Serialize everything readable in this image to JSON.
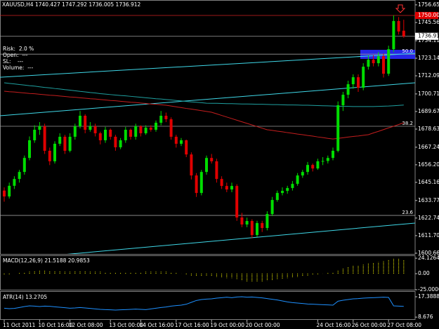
{
  "chart_data": {
    "type": "candlestick",
    "symbol": "XAUUSD,H4",
    "categories": [
      "11 Oct 2011",
      null,
      null,
      null,
      null,
      null,
      null,
      "10 Oct 16:00",
      null,
      null,
      null,
      null,
      null,
      "12 Oct 08:00",
      null,
      null,
      null,
      null,
      null,
      null,
      null,
      "13 Oct 00:00",
      null,
      null,
      null,
      null,
      null,
      "14 Oct 16:00",
      null,
      null,
      null,
      null,
      null,
      null,
      "17 Oct 16:00",
      null,
      null,
      null,
      null,
      null,
      null,
      "19 Oct 00:00",
      null,
      null,
      null,
      null,
      null,
      null,
      "20 Oct 00:00",
      null,
      null,
      null,
      null,
      null,
      null,
      null,
      null,
      null,
      null,
      null,
      null,
      null,
      "24 Oct 16:00",
      null,
      null,
      null,
      null,
      null,
      null,
      "26 Oct 00:00",
      null,
      null,
      null,
      null,
      null,
      null,
      "27 Oct 08:00",
      null,
      null,
      null
    ],
    "ohlc": [
      [
        1640,
        1642,
        1633,
        1636.3
      ],
      [
        1636.3,
        1645,
        1635,
        1643
      ],
      [
        1643,
        1649,
        1641,
        1647.3
      ],
      [
        1647.3,
        1653,
        1645,
        1651.7
      ],
      [
        1651.7,
        1662,
        1650,
        1660.5
      ],
      [
        1660.5,
        1674,
        1659,
        1671.6
      ],
      [
        1671.6,
        1681,
        1670,
        1678.2
      ],
      [
        1678.2,
        1683,
        1675,
        1680.4
      ],
      [
        1680.4,
        1682,
        1663,
        1665
      ],
      [
        1665,
        1667,
        1656,
        1658.4
      ],
      [
        1658.4,
        1671,
        1657,
        1669.4
      ],
      [
        1669.4,
        1676,
        1668,
        1673.8
      ],
      [
        1673.8,
        1675,
        1663,
        1665
      ],
      [
        1665,
        1676,
        1664,
        1673.8
      ],
      [
        1673.8,
        1682,
        1672,
        1680.4
      ],
      [
        1680.4,
        1690,
        1679,
        1687
      ],
      [
        1687,
        1688,
        1676,
        1678.2
      ],
      [
        1678.2,
        1683,
        1677,
        1680.4
      ],
      [
        1680.4,
        1682,
        1674,
        1676
      ],
      [
        1676,
        1677,
        1669,
        1671.6
      ],
      [
        1671.6,
        1680,
        1670,
        1678.2
      ],
      [
        1678.2,
        1679,
        1672,
        1673.8
      ],
      [
        1673.8,
        1675,
        1665,
        1667.2
      ],
      [
        1667.2,
        1673,
        1666,
        1671.6
      ],
      [
        1671.6,
        1680,
        1670,
        1678.2
      ],
      [
        1678.2,
        1679,
        1672,
        1673.8
      ],
      [
        1673.8,
        1682,
        1672,
        1680.4
      ],
      [
        1680.4,
        1681,
        1674,
        1676
      ],
      [
        1676,
        1681,
        1675,
        1679.5
      ],
      [
        1679.5,
        1681,
        1677,
        1678.2
      ],
      [
        1678.2,
        1684,
        1677,
        1682.6
      ],
      [
        1682.6,
        1690,
        1681,
        1687
      ],
      [
        1687,
        1689,
        1683,
        1684.8
      ],
      [
        1684.8,
        1686,
        1672,
        1673.8
      ],
      [
        1673.8,
        1675,
        1667,
        1669.4
      ],
      [
        1669.4,
        1673,
        1668,
        1671.6
      ],
      [
        1671.6,
        1672,
        1661,
        1662.7
      ],
      [
        1662.7,
        1664,
        1647,
        1649.5
      ],
      [
        1649.5,
        1651,
        1636,
        1638.5
      ],
      [
        1638.5,
        1653,
        1637,
        1651.7
      ],
      [
        1651.7,
        1662,
        1650,
        1660.5
      ],
      [
        1660.5,
        1663,
        1657,
        1658.4
      ],
      [
        1658.4,
        1660,
        1645,
        1647.3
      ],
      [
        1647.3,
        1649,
        1641,
        1642.9
      ],
      [
        1642.9,
        1645,
        1639,
        1640.7
      ],
      [
        1640.7,
        1645,
        1639,
        1642.9
      ],
      [
        1642.9,
        1644,
        1621,
        1623.1
      ],
      [
        1623.1,
        1626,
        1617,
        1618.7
      ],
      [
        1618.7,
        1623,
        1617,
        1620.9
      ],
      [
        1620.9,
        1622,
        1610,
        1612.1
      ],
      [
        1612.1,
        1621,
        1611,
        1619.6
      ],
      [
        1619.6,
        1621,
        1614,
        1616.5
      ],
      [
        1616.5,
        1627,
        1615,
        1625.3
      ],
      [
        1625.3,
        1636,
        1624,
        1634.1
      ],
      [
        1634.1,
        1640,
        1633,
        1638.5
      ],
      [
        1638.5,
        1642,
        1637,
        1639.8
      ],
      [
        1639.8,
        1643,
        1638,
        1641.6
      ],
      [
        1641.6,
        1646,
        1640,
        1644.2
      ],
      [
        1644.2,
        1651,
        1643,
        1649.5
      ],
      [
        1649.5,
        1653,
        1648,
        1651.7
      ],
      [
        1651.7,
        1658,
        1650,
        1656.1
      ],
      [
        1656.1,
        1657,
        1652,
        1653.9
      ],
      [
        1653.9,
        1660,
        1653,
        1658.4
      ],
      [
        1658.4,
        1661,
        1656,
        1658.6
      ],
      [
        1658.6,
        1662,
        1657,
        1660.5
      ],
      [
        1660.5,
        1667,
        1659,
        1665
      ],
      [
        1665,
        1696,
        1664,
        1693.6
      ],
      [
        1693.6,
        1702,
        1690,
        1700.2
      ],
      [
        1700.2,
        1709,
        1698,
        1706.8
      ],
      [
        1706.8,
        1713,
        1704,
        1711.2
      ],
      [
        1711.2,
        1713,
        1702,
        1704.6
      ],
      [
        1704.6,
        1720,
        1703,
        1717.8
      ],
      [
        1717.8,
        1725,
        1716,
        1722.2
      ],
      [
        1722.2,
        1725,
        1718,
        1720
      ],
      [
        1720,
        1727,
        1718,
        1724.4
      ],
      [
        1724.4,
        1726,
        1711,
        1713.4
      ],
      [
        1713.4,
        1731,
        1712,
        1728.8
      ],
      [
        1728.8,
        1750,
        1727,
        1746.5
      ],
      [
        1746.5,
        1749,
        1738,
        1739.9
      ],
      [
        1740.427,
        1747.292,
        1736.005,
        1736.912
      ]
    ],
    "colors": {
      "up": "#00dd00",
      "down": "#e00000"
    },
    "ylim": [
      1600.2,
      1759.7
    ],
    "yticks": [
      1756.65,
      1745.56,
      1734.11,
      1723.14,
      1712.09,
      1700.71,
      1689.67,
      1678.63,
      1667.24,
      {
        "value": 1656.2,
        "label": "1656.20"
      },
      1645.16,
      1633.77,
      1622.74,
      {
        "value": 1611.7,
        "label": "1611.70"
      },
      1600.66
    ],
    "moving_averages": [
      {
        "color": "#c41e1e",
        "values": [
          1702.4,
          1702.1,
          1701.9,
          1701.6,
          1701.3,
          1701.0,
          1700.8,
          1700.5,
          1700.2,
          1699.9,
          1699.7,
          1699.4,
          1699.1,
          1698.8,
          1698.6,
          1698.3,
          1698.0,
          1697.7,
          1697.5,
          1697.2,
          1696.9,
          1696.6,
          1696.4,
          1696.1,
          1695.8,
          1695.5,
          1695.3,
          1695.0,
          1694.7,
          1694.4,
          1694.2,
          1693.9,
          1693.6,
          1693.1,
          1692.6,
          1692.1,
          1691.6,
          1691.2,
          1690.7,
          1690.2,
          1689.7,
          1689.2,
          1688.2,
          1687.2,
          1686.2,
          1685.2,
          1684.2,
          1683.2,
          1682.2,
          1681.2,
          1680.2,
          1679.2,
          1678.2,
          1677.8,
          1677.3,
          1676.9,
          1676.4,
          1676.0,
          1675.5,
          1675.1,
          1674.6,
          1674.2,
          1673.7,
          1673.3,
          1672.8,
          1672.4,
          1672.8,
          1673.2,
          1673.6,
          1674.0,
          1674.3,
          1674.7,
          1675.1,
          1676.2,
          1677.2,
          1678.3,
          1679.4,
          1680.4,
          1681.5,
          1682.6
        ]
      },
      {
        "color": "#1fa0a0",
        "values": [
          1707.7,
          1707.3,
          1707.0,
          1706.6,
          1706.3,
          1705.9,
          1705.6,
          1705.2,
          1704.8,
          1704.5,
          1704.1,
          1703.8,
          1703.4,
          1703.1,
          1702.7,
          1702.3,
          1702.0,
          1701.6,
          1701.3,
          1700.9,
          1700.6,
          1700.3,
          1700.0,
          1699.7,
          1699.5,
          1699.2,
          1698.9,
          1698.6,
          1698.3,
          1698.0,
          1697.7,
          1697.5,
          1697.2,
          1696.9,
          1696.6,
          1696.3,
          1696.0,
          1695.7,
          1695.5,
          1695.2,
          1694.9,
          1694.8,
          1694.8,
          1694.7,
          1694.6,
          1694.6,
          1694.5,
          1694.4,
          1694.4,
          1694.3,
          1694.2,
          1694.2,
          1694.1,
          1694.0,
          1694.0,
          1693.9,
          1693.8,
          1693.8,
          1693.7,
          1693.6,
          1693.6,
          1693.5,
          1693.4,
          1693.3,
          1693.2,
          1693.1,
          1693.0,
          1692.9,
          1692.9,
          1692.8,
          1692.8,
          1692.8,
          1692.8,
          1692.8,
          1692.9,
          1693.0,
          1693.1,
          1693.3,
          1693.5,
          1693.7
        ]
      }
    ],
    "trendlines": [
      {
        "color": "#3fd8e8",
        "values": [
          1711.2,
          1726.2
        ]
      },
      {
        "color": "#3fd8e8",
        "values": [
          1687,
          1707.7
        ]
      },
      {
        "color": "#3fd8e8",
        "values": [
          1596.2,
          1619.6
        ]
      }
    ],
    "levels": [
      {
        "label": "50.0",
        "value": 1725.7
      },
      {
        "label": "38.2",
        "value": 1680.4
      },
      {
        "label": "23.6",
        "value": 1624.4
      }
    ],
    "zone": [
      1722.7,
      1728.4
    ],
    "resistance": {
      "value": 1750,
      "label": "1750.00"
    },
    "last": 1736.91,
    "risk_panel": [
      "Risk:  2.0 %",
      "Open:  ---",
      "SL:    ---",
      "Volume:  ---"
    ],
    "macd": {
      "title": "MACD(12,26,9) 21.5188 20.9853",
      "type": "bar",
      "color": "#ffff00",
      "values": [
        -2,
        -1,
        0,
        1,
        2,
        3,
        4,
        5,
        5,
        4,
        4,
        4,
        3,
        3,
        4,
        4,
        4,
        3,
        3,
        3,
        2,
        2,
        2,
        2,
        2,
        2,
        2,
        2,
        3,
        3,
        3,
        3,
        3,
        2,
        1,
        0,
        -1,
        -3,
        -4,
        -4,
        -3,
        -4,
        -5,
        -6,
        -7,
        -7,
        -9,
        -11,
        -12,
        -13,
        -13,
        -12,
        -11,
        -10,
        -9,
        -8,
        -7,
        -6,
        -5,
        -4,
        -3,
        -2,
        -1,
        0,
        1,
        2,
        5,
        8,
        10,
        12,
        13,
        14,
        16,
        17,
        18,
        20,
        22,
        23,
        24.1,
        21.5188
      ],
      "ylim": [
        -25,
        28.6
      ],
      "yticks": [
        24.1264,
        {
          "value": 0,
          "label": "0.00"
        },
        {
          "value": -25,
          "label": "-25.0000"
        }
      ]
    },
    "atr": {
      "title": "ATR(14) 13.2705",
      "type": "line",
      "color": "#1e90ff",
      "values": [
        12.5,
        12.3,
        12.4,
        12.8,
        13.2,
        13.5,
        13.4,
        13.2,
        13.4,
        13.3,
        13.1,
        12.9,
        12.7,
        12.5,
        12.6,
        12.8,
        12.6,
        12.4,
        12.2,
        12.0,
        11.9,
        11.8,
        11.7,
        11.8,
        11.9,
        12.0,
        12.1,
        12.0,
        11.9,
        12.2,
        12.5,
        12.8,
        13.0,
        13.4,
        13.6,
        13.8,
        14.2,
        15.0,
        15.8,
        16.2,
        16.4,
        16.5,
        16.8,
        17.0,
        17.2,
        17.0,
        17.3,
        17.39,
        17.2,
        17.3,
        17.1,
        16.9,
        16.6,
        16.3,
        16.0,
        15.6,
        15.2,
        14.9,
        14.7,
        14.5,
        14.3,
        14.2,
        14.1,
        14.0,
        13.9,
        13.8,
        15.5,
        15.9,
        16.2,
        16.5,
        16.6,
        16.8,
        16.9,
        17.0,
        17.1,
        17.2,
        17.1,
        13.5,
        13.4,
        13.2705
      ],
      "ylim": [
        7.8,
        19.8
      ],
      "yticks": [
        17.3888,
        8.676
      ]
    }
  }
}
